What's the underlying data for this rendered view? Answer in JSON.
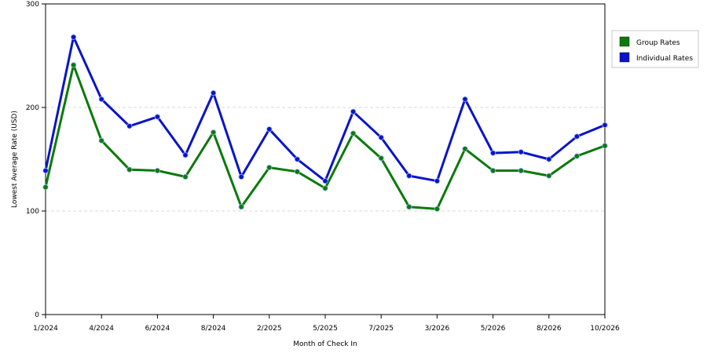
{
  "chart_data": {
    "type": "line",
    "xlabel": "Month of Check In",
    "ylabel": "Lowest Average Rate (USD)",
    "ylim": [
      0,
      300
    ],
    "yticks": [
      0,
      100,
      200,
      300
    ],
    "grid": true,
    "legend_position": "top-right",
    "x_tick_labels": [
      "1/2024",
      "4/2024",
      "6/2024",
      "8/2024",
      "2/2025",
      "5/2025",
      "7/2025",
      "3/2026",
      "5/2026",
      "8/2026",
      "10/2026"
    ],
    "x_tick_positions": [
      0,
      2,
      4,
      6,
      8,
      10,
      12,
      14,
      16,
      18,
      20
    ],
    "point_count": 21,
    "series": [
      {
        "name": "Group Rates",
        "color": "#0a7a0a",
        "values": [
          123,
          241,
          168,
          140,
          139,
          133,
          176,
          104,
          142,
          138,
          122,
          175,
          151,
          104,
          102,
          160,
          139,
          139,
          134,
          153,
          163
        ]
      },
      {
        "name": "Individual Rates",
        "color": "#0a14c8",
        "values": [
          139,
          268,
          208,
          182,
          191,
          154,
          214,
          133,
          179,
          150,
          129,
          196,
          171,
          134,
          129,
          208,
          156,
          157,
          150,
          172,
          183
        ]
      }
    ]
  }
}
